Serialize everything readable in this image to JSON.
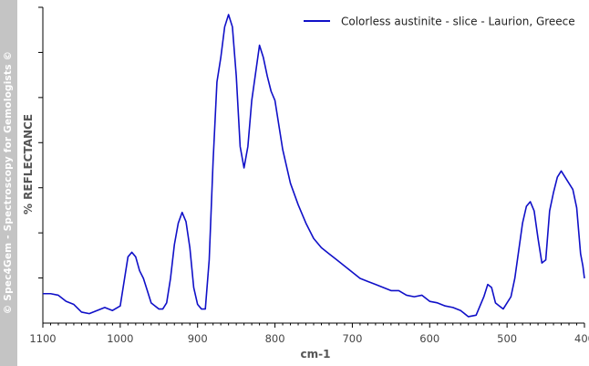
{
  "watermark": "© Spec4Gem - Spectroscopy for Gemologists ©",
  "chart_data": {
    "type": "line",
    "title": "",
    "xlabel": "cm-1",
    "ylabel": "%  REFLECTANCE",
    "xlim": [
      1100,
      400
    ],
    "x_reversed": true,
    "x_ticks": [
      1100,
      1000,
      900,
      800,
      700,
      600,
      500,
      400
    ],
    "y_tick_count": 7,
    "ylim": [
      0,
      100
    ],
    "y_values_shown": false,
    "legend": "top-right",
    "grid": false,
    "series": [
      {
        "name": "Colorless austinite - slice - Laurion, Greece",
        "color": "#1010c8",
        "x": [
          1100,
          1090,
          1080,
          1070,
          1060,
          1050,
          1040,
          1030,
          1020,
          1010,
          1000,
          995,
          990,
          985,
          980,
          975,
          970,
          965,
          960,
          955,
          950,
          945,
          940,
          935,
          930,
          925,
          920,
          915,
          910,
          905,
          900,
          895,
          890,
          885,
          880,
          875,
          870,
          865,
          860,
          855,
          850,
          845,
          840,
          835,
          830,
          825,
          820,
          815,
          810,
          805,
          800,
          795,
          790,
          780,
          770,
          760,
          750,
          740,
          730,
          720,
          710,
          700,
          690,
          680,
          670,
          660,
          650,
          640,
          630,
          620,
          610,
          600,
          590,
          580,
          570,
          560,
          550,
          540,
          535,
          530,
          525,
          520,
          515,
          510,
          505,
          500,
          495,
          490,
          485,
          480,
          475,
          470,
          465,
          460,
          455,
          450,
          445,
          440,
          435,
          430,
          425,
          420,
          415,
          410,
          405,
          402,
          400
        ],
        "y": [
          9.0,
          9.0,
          8.5,
          6.5,
          5.5,
          3.0,
          2.5,
          3.5,
          4.5,
          3.5,
          5.0,
          13.0,
          21.0,
          22.5,
          21.0,
          16.5,
          14.0,
          10.0,
          6.0,
          5.0,
          4.0,
          4.0,
          6.0,
          14.0,
          25.0,
          32.0,
          35.5,
          32.5,
          24.0,
          11.0,
          5.5,
          4.0,
          4.0,
          20.0,
          52.0,
          78.0,
          86.0,
          96.0,
          100.0,
          96.0,
          80.0,
          57.0,
          50.0,
          57.0,
          72.0,
          81.0,
          90.0,
          86.0,
          80.0,
          75.0,
          72.0,
          64.0,
          56.0,
          45.0,
          38.0,
          32.0,
          27.0,
          24.0,
          22.0,
          20.0,
          18.0,
          16.0,
          14.0,
          13.0,
          12.0,
          11.0,
          10.0,
          10.0,
          8.5,
          8.0,
          8.5,
          6.5,
          6.0,
          5.0,
          4.5,
          3.5,
          1.5,
          2.0,
          5.0,
          8.0,
          12.0,
          11.0,
          6.0,
          5.0,
          4.0,
          6.0,
          8.0,
          14.0,
          23.0,
          32.0,
          37.5,
          39.0,
          36.0,
          27.0,
          19.0,
          20.0,
          36.0,
          42.0,
          47.0,
          49.0,
          47.0,
          45.0,
          43.0,
          37.0,
          22.0,
          18.0,
          14.0
        ]
      }
    ]
  }
}
